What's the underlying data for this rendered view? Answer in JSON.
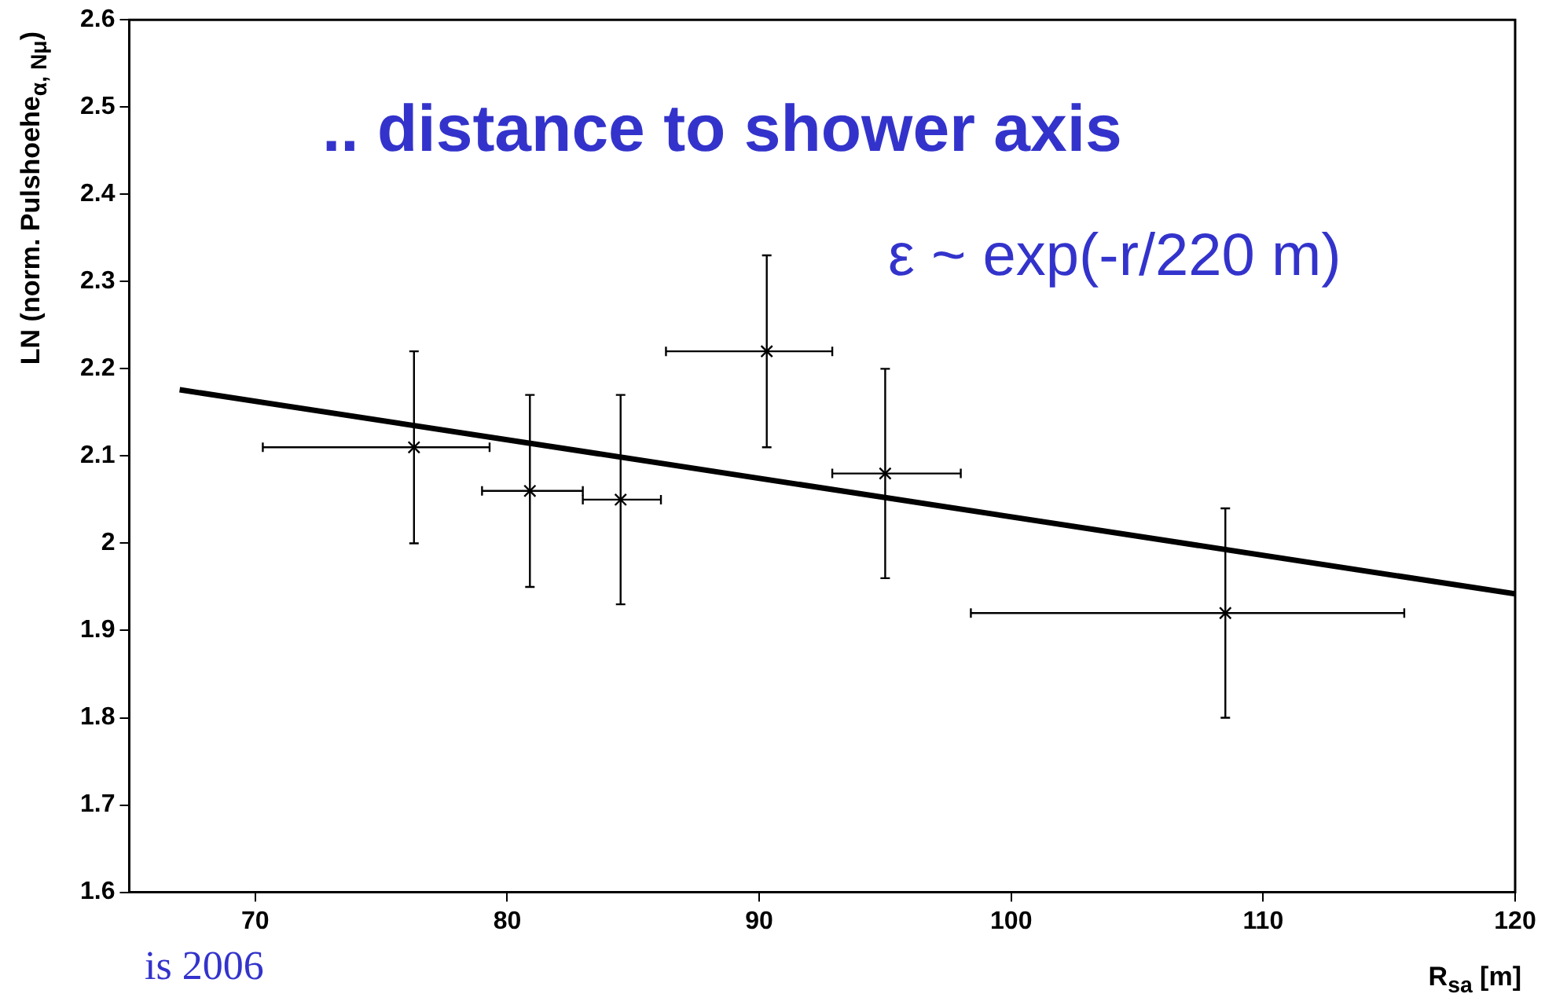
{
  "chart_data": {
    "type": "scatter",
    "xlabel": "R$_{sa}$ [m]",
    "ylabel": "LN (norm. Pulshoehe$_{α, Nμ}$)",
    "xlim": [
      65,
      120
    ],
    "xticks": [
      70,
      80,
      90,
      100,
      110,
      120
    ],
    "ylim": [
      1.6,
      2.6
    ],
    "yticks": [
      1.6,
      1.7,
      1.8,
      1.9,
      2,
      2.1,
      2.2,
      2.3,
      2.4,
      2.5,
      2.6
    ],
    "grid": false,
    "legend": false,
    "series": [
      {
        "type": "scatter",
        "marker": "cross",
        "color": "#000000",
        "x": [
          76.3,
          80.9,
          84.5,
          90.3,
          95.0,
          108.5
        ],
        "values": [
          2.11,
          2.06,
          2.05,
          2.22,
          2.08,
          1.92
        ],
        "errors": [
          [
            2.0,
            2.22
          ],
          [
            1.95,
            2.17
          ],
          [
            1.93,
            2.17
          ],
          [
            2.11,
            2.33
          ],
          [
            1.96,
            2.2
          ],
          [
            1.8,
            2.04
          ]
        ],
        "xerrors": [
          [
            70.3,
            79.3
          ],
          [
            79.0,
            83.0
          ],
          [
            83.0,
            86.1
          ],
          [
            86.3,
            92.9
          ],
          [
            92.9,
            98.0
          ],
          [
            98.4,
            115.6
          ]
        ]
      },
      {
        "type": "line",
        "color": "#000000",
        "x": [
          67,
          120
        ],
        "values": [
          2.176,
          1.942
        ]
      }
    ],
    "annotations": [
      ".. distance to shower axis",
      "ε ~ exp(-r/220 m)",
      "is 2006"
    ]
  }
}
